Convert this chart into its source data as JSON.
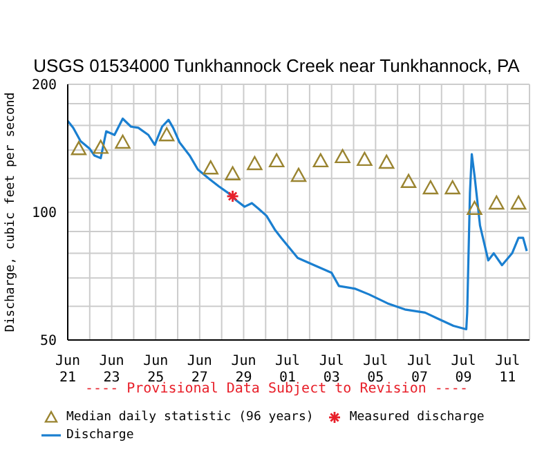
{
  "chart_data": {
    "type": "line",
    "title": "USGS 01534000 Tunkhannock Creek near Tunkhannock, PA",
    "ylabel": "Discharge, cubic feet per second",
    "log": "y",
    "grid": true,
    "legend": "bottom",
    "annotations": [
      "---- Provisional Data Subject to Revision ----"
    ],
    "xlim": [
      "--06-21",
      "--07-12"
    ],
    "xticks": [
      {
        "value": "--06-21",
        "label": "Jun 21"
      },
      {
        "value": "--06-22",
        "label": null
      },
      {
        "value": "--06-23",
        "label": "Jun 23"
      },
      {
        "value": "--06-24",
        "label": null
      },
      {
        "value": "--06-25",
        "label": "Jun 25"
      },
      {
        "value": "--06-26",
        "label": null
      },
      {
        "value": "--06-27",
        "label": "Jun 27"
      },
      {
        "value": "--06-28",
        "label": null
      },
      {
        "value": "--06-29",
        "label": "Jun 29"
      },
      {
        "value": "--06-30",
        "label": null
      },
      {
        "value": "--07-01",
        "label": "Jul 01"
      },
      {
        "value": "--07-02",
        "label": null
      },
      {
        "value": "--07-03",
        "label": "Jul 03"
      },
      {
        "value": "--07-04",
        "label": null
      },
      {
        "value": "--07-05",
        "label": "Jul 05"
      },
      {
        "value": "--07-06",
        "label": null
      },
      {
        "value": "--07-07",
        "label": "Jul 07"
      },
      {
        "value": "--07-08",
        "label": null
      },
      {
        "value": "--07-09",
        "label": "Jul 09"
      },
      {
        "value": "--07-10",
        "label": null
      },
      {
        "value": "--07-11",
        "label": "Jul 11"
      }
    ],
    "ylim": [
      50,
      200
    ],
    "yticks": [
      50,
      {
        "value": 60,
        "label": null
      },
      {
        "value": 70,
        "label": null
      },
      {
        "value": 80,
        "label": null
      },
      {
        "value": 90,
        "label": null
      },
      100,
      {
        "value": 120,
        "label": null
      },
      {
        "value": 140,
        "label": null
      },
      {
        "value": 160,
        "label": null
      },
      {
        "value": 180,
        "label": null
      },
      200
    ],
    "series": [
      {
        "name": "Median daily statistic (96 years)",
        "type": "scatter",
        "marker": "triangle",
        "color": "#9a8430",
        "x": [
          "--06-21T12:00",
          "--06-22T12:00",
          "--06-23T12:00",
          "--06-24T12:00",
          "--06-25T12:00",
          "--06-26T12:00",
          "--06-27T12:00",
          "--06-28T12:00",
          "--06-29T12:00",
          "--06-30T12:00",
          "--07-01T12:00",
          "--07-02T12:00",
          "--07-03T12:00",
          "--07-04T12:00",
          "--07-05T12:00",
          "--07-06T12:00",
          "--07-07T12:00",
          "--07-08T12:00",
          "--07-09T12:00",
          "--07-10T12:00",
          "--07-11T12:00"
        ],
        "values": [
          141,
          142,
          146,
          null,
          152,
          null,
          127,
          123,
          130,
          132,
          122,
          132,
          135,
          133,
          131,
          118,
          114,
          114,
          102,
          105,
          105
        ]
      },
      {
        "name": "Measured discharge",
        "type": "scatter",
        "marker": "cross",
        "color": "#e8202a",
        "x": [
          "--06-28T12:00"
        ],
        "values": [
          109
        ]
      },
      {
        "name": "Discharge",
        "marker": "none",
        "color": "#1a7fd0",
        "x": [
          "--06-21T00:00",
          "--06-21T06:00",
          "--06-21T14:00",
          "--06-22T00:00",
          "--06-22T05:00",
          "--06-22T12:00",
          "--06-22T18:00",
          "--06-23T03:00",
          "--06-23T12:00",
          "--06-23T21:00",
          "--06-24T05:00",
          "--06-24T16:00",
          "--06-24T23:00",
          "--06-25T07:00",
          "--06-25T14:00",
          "--06-25T19:00",
          "--06-26T02:00",
          "--06-26T13:00",
          "--06-26T22:00",
          "--06-27T12:00",
          "--06-27T21:00",
          "--06-28T07:00",
          "--06-28T15:00",
          "--06-29T01:00",
          "--06-29T09:00",
          "--06-29T16:00",
          "--06-30T01:00",
          "--06-30T10:00",
          "--06-30T17:00",
          "--07-01T11:00",
          "--07-02T05:00",
          "--07-03T00:00",
          "--07-03T08:00",
          "--07-04T02:00",
          "--07-04T17:00",
          "--07-05T13:00",
          "--07-06T08:00",
          "--07-07T06:00",
          "--07-07T21:00",
          "--07-08T13:00",
          "--07-09T03:00",
          "--07-09T04:00",
          "--07-09T07:00",
          "--07-09T09:00",
          "--07-09T12:00",
          "--07-09T18:00",
          "--07-10T03:00",
          "--07-10T09:00",
          "--07-10T18:00",
          "--07-11T05:00",
          "--07-11T12:00",
          "--07-11T17:00",
          "--07-11T21:00"
        ],
        "values": [
          164,
          158,
          147,
          141,
          136,
          134,
          155,
          152,
          166,
          159,
          158,
          152,
          144,
          159,
          165,
          158,
          146,
          136,
          126,
          119,
          115,
          111,
          107,
          103,
          105,
          102,
          98,
          91,
          87,
          78,
          75,
          72,
          67,
          66,
          64,
          61,
          59,
          58,
          56,
          54,
          53,
          58,
          111,
          137,
          122,
          93,
          77,
          80,
          75,
          80,
          87,
          87,
          81
        ]
      }
    ]
  }
}
